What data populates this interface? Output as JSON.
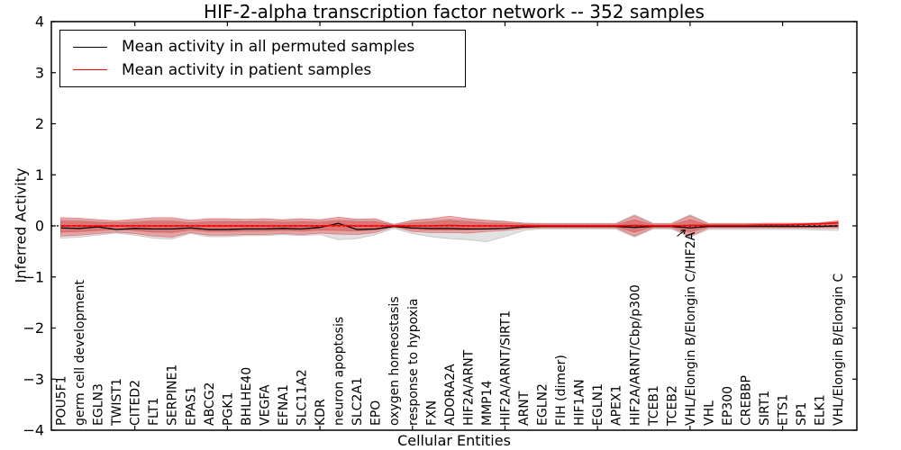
{
  "chart_data": {
    "type": "line",
    "title": "HIF-2-alpha transcription factor network -- 352 samples",
    "xlabel": "Cellular Entities",
    "ylabel": "Inferred Activity",
    "sample_count": 352,
    "ylim": [
      -4,
      4
    ],
    "yticks": [
      "4",
      "3",
      "2",
      "1",
      "0",
      "−1",
      "−2",
      "−3",
      "−4"
    ],
    "xtick_every": 5,
    "grid": false,
    "legend_position": "upper left",
    "categories": [
      "POU5F1",
      "germ cell development",
      "EGLN3",
      "TWIST1",
      "CITED2",
      "FLT1",
      "SERPINE1",
      "EPAS1",
      "ABCG2",
      "PGK1",
      "BHLHE40",
      "VEGFA",
      "EFNA1",
      "SLC11A2",
      "KDR",
      "neuron apoptosis",
      "SLC2A1",
      "EPO",
      "oxygen homeostasis",
      "response to hypoxia",
      "FXN",
      "ADORA2A",
      "HIF2A/ARNT",
      "MMP14",
      "HIF2A/ARNT/SIRT1",
      "ARNT",
      "EGLN2",
      "FIH (dimer)",
      "HIF1AN",
      "EGLN1",
      "APEX1",
      "HIF2A/ARNT/Cbp/p300",
      "TCEB1",
      "TCEB2",
      "VHL/Elongin B/Elongin C/HIF2A",
      "VHL",
      "EP300",
      "CREBBP",
      "SIRT1",
      "ETS1",
      "SP1",
      "ELK1",
      "VHL/Elongin B/Elongin C"
    ],
    "series": [
      {
        "name": "Mean activity in all permuted samples",
        "color": "#000000",
        "style": "solid",
        "values": [
          -0.04,
          -0.05,
          -0.02,
          -0.07,
          -0.05,
          -0.06,
          -0.06,
          -0.04,
          -0.07,
          -0.07,
          -0.06,
          -0.06,
          -0.05,
          -0.06,
          -0.03,
          0.05,
          -0.07,
          -0.06,
          -0.01,
          -0.04,
          -0.05,
          -0.05,
          -0.06,
          -0.06,
          -0.05,
          -0.02,
          -0.01,
          -0.01,
          -0.01,
          -0.01,
          -0.01,
          -0.03,
          -0.01,
          -0.01,
          -0.04,
          -0.01,
          -0.01,
          -0.01,
          -0.01,
          -0.01,
          -0.01,
          -0.01,
          0.0
        ]
      },
      {
        "name": "Mean activity in patient samples",
        "color": "#ff0000",
        "style": "solid",
        "values": [
          0,
          0,
          0,
          0,
          0,
          0,
          0,
          0,
          0,
          0,
          0,
          0,
          0,
          0,
          0,
          0.01,
          0,
          0,
          0,
          0,
          0,
          0.01,
          0,
          0,
          0,
          0,
          0,
          0,
          0,
          0,
          0,
          0.01,
          0,
          0,
          0.01,
          0.01,
          0.01,
          0.01,
          0.02,
          0.02,
          0.03,
          0.04,
          0.06
        ]
      }
    ],
    "bands": [
      {
        "name": "gray-band-permuted-spread",
        "color": "#d3d3d3",
        "opacity": 0.65,
        "stroke": "#bfbfbf",
        "upper": [
          0.12,
          0.12,
          0.09,
          0.08,
          0.1,
          0.12,
          0.12,
          0.09,
          0.11,
          0.11,
          0.1,
          0.11,
          0.1,
          0.11,
          0.1,
          0.13,
          0.11,
          0.11,
          0.04,
          0.1,
          0.12,
          0.13,
          0.12,
          0.1,
          0.08,
          0.06,
          0.05,
          0.05,
          0.05,
          0.05,
          0.05,
          0.22,
          0.05,
          0.05,
          0.22,
          0.05,
          0.05,
          0.05,
          0.05,
          0.05,
          0.05,
          0.06,
          0.08
        ],
        "lower": [
          -0.24,
          -0.22,
          -0.18,
          -0.14,
          -0.18,
          -0.24,
          -0.26,
          -0.15,
          -0.21,
          -0.21,
          -0.19,
          -0.19,
          -0.17,
          -0.19,
          -0.17,
          -0.27,
          -0.25,
          -0.17,
          -0.05,
          -0.15,
          -0.21,
          -0.25,
          -0.27,
          -0.31,
          -0.21,
          -0.09,
          -0.06,
          -0.06,
          -0.06,
          -0.06,
          -0.06,
          -0.22,
          -0.06,
          -0.06,
          -0.22,
          -0.07,
          -0.07,
          -0.07,
          -0.07,
          -0.07,
          -0.07,
          -0.08,
          -0.09
        ]
      },
      {
        "name": "red-band-outer-patient-spread",
        "color": "#e05050",
        "opacity": 0.42,
        "stroke": "#e07070",
        "upper": [
          0.16,
          0.15,
          0.12,
          0.1,
          0.13,
          0.16,
          0.16,
          0.11,
          0.14,
          0.14,
          0.13,
          0.14,
          0.12,
          0.14,
          0.12,
          0.17,
          0.13,
          0.14,
          0.02,
          0.11,
          0.14,
          0.19,
          0.14,
          0.11,
          0.09,
          0.05,
          0.04,
          0.04,
          0.04,
          0.04,
          0.04,
          0.2,
          0.04,
          0.04,
          0.2,
          0.04,
          0.04,
          0.04,
          0.05,
          0.05,
          0.05,
          0.06,
          0.1
        ],
        "lower": [
          -0.2,
          -0.18,
          -0.15,
          -0.12,
          -0.15,
          -0.2,
          -0.22,
          -0.13,
          -0.18,
          -0.18,
          -0.17,
          -0.17,
          -0.15,
          -0.17,
          -0.14,
          -0.16,
          -0.17,
          -0.13,
          -0.02,
          -0.11,
          -0.13,
          -0.13,
          -0.14,
          -0.11,
          -0.09,
          -0.05,
          -0.04,
          -0.04,
          -0.04,
          -0.04,
          -0.04,
          -0.2,
          -0.04,
          -0.04,
          -0.2,
          -0.04,
          -0.04,
          -0.04,
          -0.04,
          -0.04,
          -0.04,
          -0.04,
          -0.04
        ]
      },
      {
        "name": "red-band-inner-patient-spread",
        "color": "#d84040",
        "opacity": 0.45,
        "stroke": "#d86060",
        "upper": [
          0.09,
          0.09,
          0.07,
          0.06,
          0.07,
          0.09,
          0.09,
          0.06,
          0.08,
          0.08,
          0.08,
          0.08,
          0.07,
          0.08,
          0.07,
          0.1,
          0.08,
          0.08,
          0.01,
          0.06,
          0.08,
          0.11,
          0.08,
          0.06,
          0.05,
          0.03,
          0.02,
          0.02,
          0.02,
          0.02,
          0.02,
          0.12,
          0.02,
          0.02,
          0.12,
          0.02,
          0.02,
          0.02,
          0.03,
          0.03,
          0.03,
          0.04,
          0.06
        ],
        "lower": [
          -0.12,
          -0.11,
          -0.09,
          -0.07,
          -0.09,
          -0.12,
          -0.13,
          -0.08,
          -0.11,
          -0.11,
          -0.1,
          -0.1,
          -0.09,
          -0.1,
          -0.08,
          -0.09,
          -0.1,
          -0.08,
          -0.01,
          -0.07,
          -0.08,
          -0.08,
          -0.08,
          -0.07,
          -0.05,
          -0.03,
          -0.02,
          -0.02,
          -0.02,
          -0.02,
          -0.02,
          -0.12,
          -0.02,
          -0.02,
          -0.12,
          -0.02,
          -0.02,
          -0.02,
          -0.02,
          -0.02,
          -0.02,
          -0.02,
          -0.02
        ]
      }
    ],
    "zero_line": {
      "y": 0,
      "style": "dotted",
      "color": "#000000"
    }
  }
}
